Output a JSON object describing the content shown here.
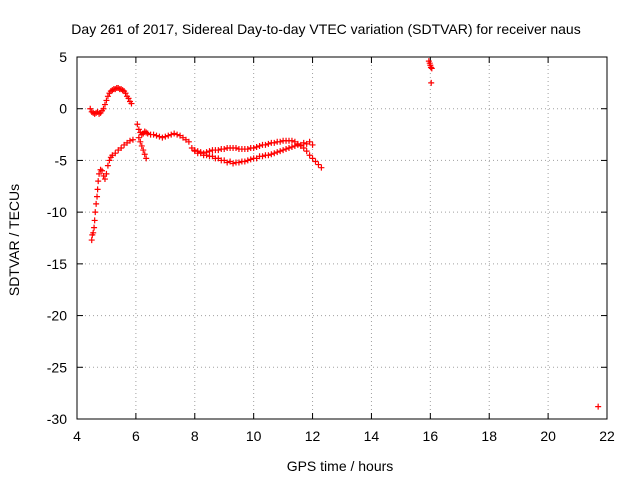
{
  "chart_data": {
    "type": "scatter",
    "title": "Day 261 of 2017, Sidereal Day-to-day VTEC variation (SDTVAR) for receiver naus",
    "xlabel": "GPS time / hours",
    "ylabel": "SDTVAR / TECUs",
    "xlim": [
      4,
      22
    ],
    "ylim": [
      -30,
      5
    ],
    "xticks": [
      "4",
      "6",
      "8",
      "10",
      "12",
      "14",
      "16",
      "18",
      "20",
      "22"
    ],
    "yticks": [
      "5",
      "0",
      "-5",
      "-10",
      "-15",
      "-20",
      "-25",
      "-30"
    ],
    "grid": true,
    "marker": "plus",
    "color": "#ff0000",
    "series": [
      {
        "name": "naus",
        "x": [
          4.45,
          4.5,
          4.55,
          4.6,
          4.65,
          4.7,
          4.75,
          4.8,
          4.85,
          4.9,
          4.95,
          5.0,
          5.05,
          5.1,
          5.15,
          5.2,
          5.25,
          5.3,
          5.35,
          5.4,
          5.45,
          5.5,
          5.55,
          5.6,
          5.65,
          5.7,
          5.75,
          5.8,
          5.85,
          4.5,
          4.52,
          4.55,
          4.58,
          4.6,
          4.62,
          4.65,
          4.68,
          4.7,
          4.72,
          4.75,
          4.8,
          4.85,
          4.9,
          4.95,
          5.0,
          5.05,
          5.1,
          5.15,
          5.2,
          5.3,
          5.4,
          5.5,
          5.6,
          5.7,
          5.8,
          5.9,
          6.05,
          6.1,
          6.15,
          6.2,
          6.25,
          6.3,
          6.35,
          6.4,
          6.5,
          6.6,
          6.7,
          6.8,
          6.9,
          7.0,
          7.1,
          7.2,
          7.3,
          7.4,
          7.5,
          7.6,
          7.7,
          7.8,
          7.9,
          8.0,
          8.1,
          8.2,
          8.3,
          8.4,
          8.5,
          8.6,
          8.7,
          8.8,
          8.9,
          9.0,
          9.1,
          9.2,
          9.3,
          9.4,
          9.5,
          9.6,
          9.7,
          9.8,
          9.9,
          10.0,
          10.1,
          10.2,
          10.3,
          10.4,
          10.5,
          10.6,
          10.7,
          10.8,
          10.9,
          11.0,
          11.1,
          11.2,
          11.3,
          11.4,
          11.5,
          11.6,
          11.7,
          11.8,
          11.9,
          12.0,
          12.1,
          12.2,
          12.3,
          8.0,
          8.2,
          8.4,
          8.6,
          8.8,
          9.0,
          9.2,
          9.4,
          9.6,
          9.8,
          10.0,
          10.2,
          10.4,
          10.6,
          10.8,
          11.0,
          11.2,
          11.4,
          11.6,
          11.8,
          12.0,
          8.1,
          8.3,
          8.5,
          8.7,
          8.9,
          9.1,
          9.3,
          9.5,
          9.7,
          9.9,
          10.1,
          10.3,
          10.5,
          10.7,
          10.9,
          11.1,
          11.3,
          11.5,
          11.7,
          11.9,
          6.1,
          6.15,
          6.2,
          6.25,
          6.3,
          6.35,
          15.95,
          15.98,
          16.0,
          16.02,
          16.05,
          16.03,
          21.7
        ],
        "y": [
          0.0,
          -0.3,
          -0.4,
          -0.5,
          -0.4,
          -0.3,
          -0.5,
          -0.4,
          -0.2,
          0.0,
          0.4,
          0.8,
          1.2,
          1.5,
          1.7,
          1.8,
          1.9,
          1.9,
          2.0,
          2.0,
          1.9,
          1.9,
          1.8,
          1.7,
          1.5,
          1.2,
          1.0,
          0.7,
          0.5,
          -12.7,
          -12.2,
          -12.0,
          -11.5,
          -10.8,
          -10.0,
          -9.2,
          -8.5,
          -7.8,
          -7.0,
          -6.3,
          -5.9,
          -6.0,
          -6.5,
          -6.8,
          -6.3,
          -5.5,
          -5.0,
          -4.7,
          -4.5,
          -4.3,
          -4.0,
          -3.8,
          -3.5,
          -3.3,
          -3.1,
          -3.0,
          -1.5,
          -2.0,
          -2.3,
          -2.5,
          -2.4,
          -2.2,
          -2.3,
          -2.4,
          -2.5,
          -2.5,
          -2.6,
          -2.7,
          -2.8,
          -2.7,
          -2.6,
          -2.5,
          -2.4,
          -2.5,
          -2.6,
          -2.8,
          -3.0,
          -3.2,
          -3.8,
          -4.0,
          -4.1,
          -4.2,
          -4.3,
          -4.2,
          -4.1,
          -4.0,
          -4.0,
          -4.0,
          -3.9,
          -3.9,
          -3.8,
          -3.8,
          -3.8,
          -3.8,
          -3.9,
          -3.9,
          -3.9,
          -3.9,
          -3.8,
          -3.8,
          -3.7,
          -3.6,
          -3.5,
          -3.5,
          -3.4,
          -3.3,
          -3.3,
          -3.2,
          -3.2,
          -3.1,
          -3.1,
          -3.1,
          -3.1,
          -3.2,
          -3.4,
          -3.6,
          -3.8,
          -4.1,
          -4.5,
          -4.8,
          -5.1,
          -5.4,
          -5.7,
          -4.1,
          -4.3,
          -4.5,
          -4.6,
          -4.8,
          -5.0,
          -5.1,
          -5.2,
          -5.1,
          -5.0,
          -4.8,
          -4.6,
          -4.5,
          -4.4,
          -4.2,
          -4.0,
          -3.8,
          -3.6,
          -3.5,
          -3.4,
          -3.5,
          -4.3,
          -4.5,
          -4.6,
          -4.8,
          -5.0,
          -5.2,
          -5.3,
          -5.2,
          -5.1,
          -4.9,
          -4.8,
          -4.6,
          -4.5,
          -4.3,
          -4.1,
          -3.9,
          -3.7,
          -3.5,
          -3.3,
          -3.2,
          -2.8,
          -3.2,
          -3.6,
          -4.0,
          -4.4,
          -4.8,
          4.6,
          4.4,
          4.2,
          4.0,
          3.9,
          2.5,
          -28.8
        ]
      }
    ]
  }
}
